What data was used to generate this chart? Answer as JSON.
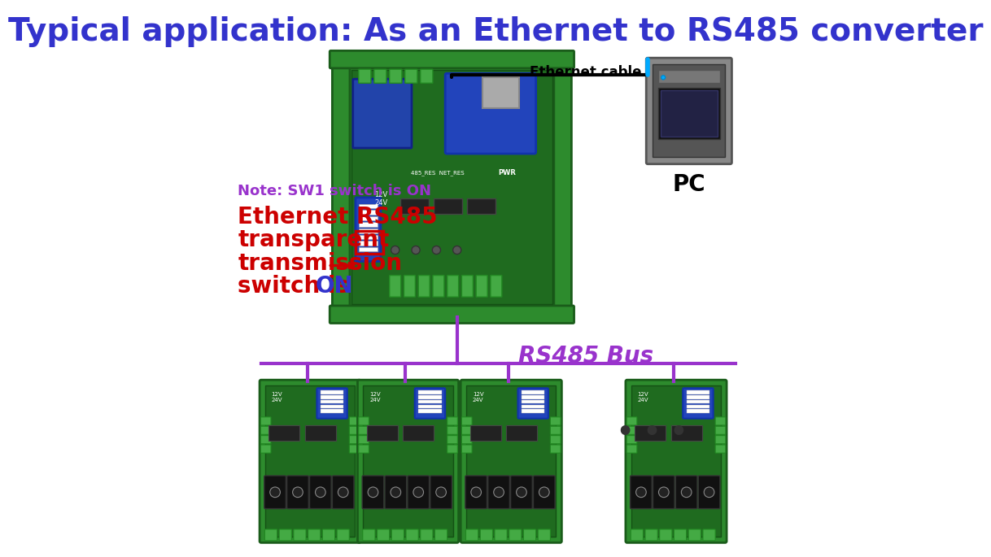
{
  "title": "Typical application: As an Ethernet to RS485 converter",
  "title_color": "#3333CC",
  "title_fontsize": 28,
  "bg_color": "#FFFFFF",
  "note_line1": "Note: SW1 switch is ON",
  "note_line1_color": "#9933CC",
  "note_line2": "Ethernet RS485",
  "note_line3": "transparent",
  "note_line4": "transmission",
  "note_line5": "switch is ON",
  "note_red_color": "#CC0000",
  "note_on_color": "#3333CC",
  "ethernet_label": "Ethernet cable",
  "pc_label": "PC",
  "rs485_label": "RS485 Bus",
  "rs485_color": "#9933CC",
  "arrow_color": "#9933CC",
  "line_color": "#000000",
  "main_board_color": "#2D8B2D",
  "sub_board_color": "#2D8B2D",
  "dots_color": "#333333"
}
